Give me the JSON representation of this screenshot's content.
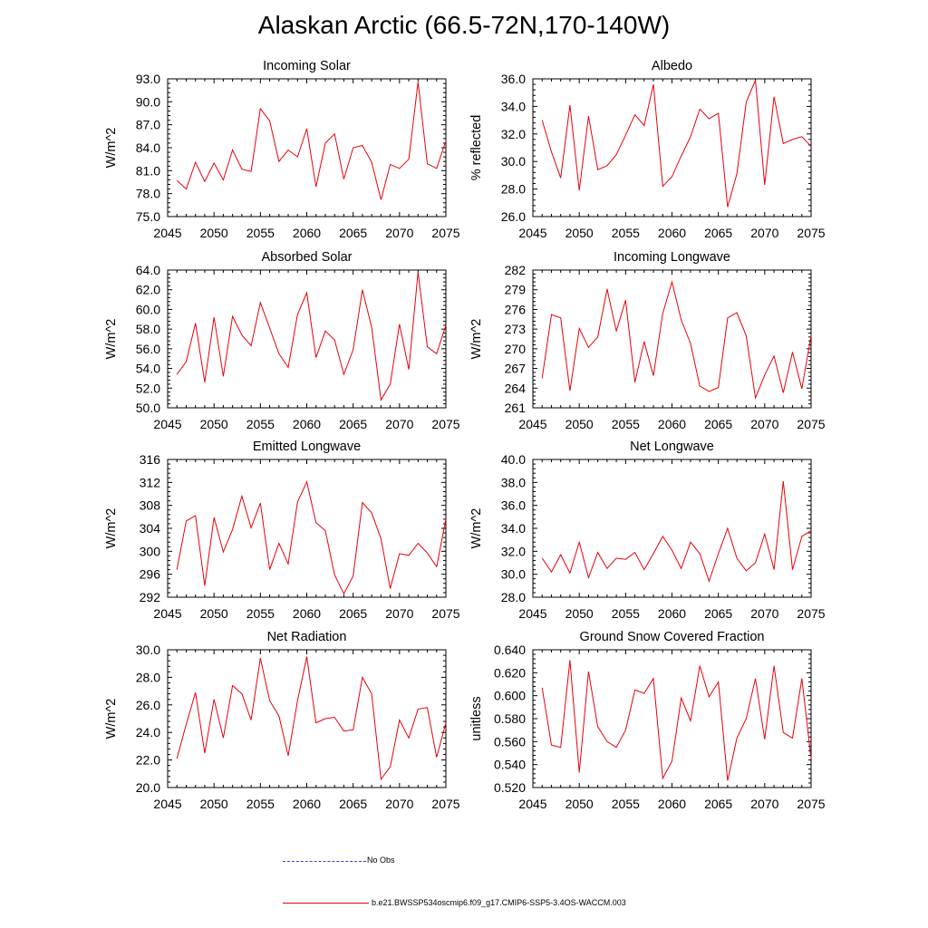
{
  "title": "Alaskan Arctic (66.5-72N,170-140W)",
  "colors": {
    "model": "#e8000b",
    "obs": "#3b3bd6",
    "axis": "#000000"
  },
  "legend": {
    "obs_label": "No Obs",
    "model_label": "b.e21.BWSSP534oscmip6.f09_g17.CMIP6-SSP5-3.4OS-WACCM.003"
  },
  "chart_data": [
    {
      "type": "line",
      "title": "Incoming Solar",
      "xlabel": "",
      "ylabel": "W/m^2",
      "xlim": [
        2045,
        2075
      ],
      "ylim": [
        75.0,
        93.0
      ],
      "x_ticks": [
        2045,
        2050,
        2055,
        2060,
        2065,
        2070,
        2075
      ],
      "y_ticks": [
        "75.0",
        "78.0",
        "81.0",
        "84.0",
        "87.0",
        "90.0",
        "93.0"
      ],
      "x": [
        2046,
        2047,
        2048,
        2049,
        2050,
        2051,
        2052,
        2053,
        2054,
        2055,
        2056,
        2057,
        2058,
        2059,
        2060,
        2061,
        2062,
        2063,
        2064,
        2065,
        2066,
        2067,
        2068,
        2069,
        2070,
        2071,
        2072,
        2073,
        2074,
        2075
      ],
      "series": [
        {
          "name": "b.e21.BWSSP534oscmip6.f09_g17.CMIP6-SSP5-3.4OS-WACCM.003",
          "values": [
            79.7,
            78.6,
            82.1,
            79.6,
            82.0,
            79.8,
            83.7,
            81.2,
            80.9,
            89.1,
            87.5,
            82.2,
            83.7,
            82.8,
            86.5,
            78.9,
            84.6,
            85.8,
            79.9,
            84.0,
            84.3,
            82.1,
            77.2,
            81.8,
            81.3,
            82.5,
            92.6,
            81.9,
            81.3,
            84.9
          ]
        }
      ]
    },
    {
      "type": "line",
      "title": "Albedo",
      "xlabel": "",
      "ylabel": "% reflected",
      "xlim": [
        2045,
        2075
      ],
      "ylim": [
        26.0,
        36.0
      ],
      "x_ticks": [
        2045,
        2050,
        2055,
        2060,
        2065,
        2070,
        2075
      ],
      "y_ticks": [
        "26.0",
        "28.0",
        "30.0",
        "32.0",
        "34.0",
        "36.0"
      ],
      "x": [
        2046,
        2047,
        2048,
        2049,
        2050,
        2051,
        2052,
        2053,
        2054,
        2055,
        2056,
        2057,
        2058,
        2059,
        2060,
        2061,
        2062,
        2063,
        2064,
        2065,
        2066,
        2067,
        2068,
        2069,
        2070,
        2071,
        2072,
        2073,
        2074,
        2075
      ],
      "series": [
        {
          "name": "b.e21.BWSSP534oscmip6.f09_g17.CMIP6-SSP5-3.4OS-WACCM.003",
          "values": [
            33.0,
            30.7,
            28.8,
            34.1,
            27.9,
            33.3,
            29.4,
            29.7,
            30.5,
            31.9,
            33.4,
            32.6,
            35.6,
            28.2,
            28.9,
            30.4,
            31.8,
            33.8,
            33.1,
            33.5,
            26.7,
            29.1,
            34.3,
            35.9,
            28.3,
            34.7,
            31.3,
            31.6,
            31.8,
            31.1
          ]
        }
      ]
    },
    {
      "type": "line",
      "title": "Absorbed Solar",
      "xlabel": "",
      "ylabel": "W/m^2",
      "xlim": [
        2045,
        2075
      ],
      "ylim": [
        50.0,
        64.0
      ],
      "x_ticks": [
        2045,
        2050,
        2055,
        2060,
        2065,
        2070,
        2075
      ],
      "y_ticks": [
        "50.0",
        "52.0",
        "54.0",
        "56.0",
        "58.0",
        "60.0",
        "62.0",
        "64.0"
      ],
      "x": [
        2046,
        2047,
        2048,
        2049,
        2050,
        2051,
        2052,
        2053,
        2054,
        2055,
        2056,
        2057,
        2058,
        2059,
        2060,
        2061,
        2062,
        2063,
        2064,
        2065,
        2066,
        2067,
        2068,
        2069,
        2070,
        2071,
        2072,
        2073,
        2074,
        2075
      ],
      "series": [
        {
          "name": "b.e21.BWSSP534oscmip6.f09_g17.CMIP6-SSP5-3.4OS-WACCM.003",
          "values": [
            53.4,
            54.7,
            58.6,
            52.6,
            59.2,
            53.2,
            59.3,
            57.4,
            56.3,
            60.7,
            58.1,
            55.5,
            54.1,
            59.5,
            61.7,
            55.1,
            57.8,
            56.9,
            53.4,
            55.9,
            62.0,
            58.2,
            50.8,
            52.4,
            58.5,
            53.9,
            63.8,
            56.2,
            55.5,
            58.4
          ]
        }
      ]
    },
    {
      "type": "line",
      "title": "Incoming Longwave",
      "xlabel": "",
      "ylabel": "W/m^2",
      "xlim": [
        2045,
        2075
      ],
      "ylim": [
        261,
        282
      ],
      "x_ticks": [
        2045,
        2050,
        2055,
        2060,
        2065,
        2070,
        2075
      ],
      "y_ticks": [
        "261",
        "264",
        "267",
        "270",
        "273",
        "276",
        "279",
        "282"
      ],
      "x": [
        2046,
        2047,
        2048,
        2049,
        2050,
        2051,
        2052,
        2053,
        2054,
        2055,
        2056,
        2057,
        2058,
        2059,
        2060,
        2061,
        2062,
        2063,
        2064,
        2065,
        2066,
        2067,
        2068,
        2069,
        2070,
        2071,
        2072,
        2073,
        2074,
        2075
      ],
      "series": [
        {
          "name": "b.e21.BWSSP534oscmip6.f09_g17.CMIP6-SSP5-3.4OS-WACCM.003",
          "values": [
            265.5,
            275.2,
            274.7,
            263.6,
            273.1,
            270.2,
            271.8,
            279.1,
            272.7,
            277.4,
            264.9,
            271.1,
            265.9,
            275.4,
            280.2,
            274.4,
            270.8,
            264.3,
            263.5,
            264.1,
            274.7,
            275.5,
            272.0,
            262.5,
            266.0,
            268.9,
            263.3,
            269.5,
            263.9,
            272.0
          ]
        }
      ]
    },
    {
      "type": "line",
      "title": "Emitted Longwave",
      "xlabel": "",
      "ylabel": "W/m^2",
      "xlim": [
        2045,
        2075
      ],
      "ylim": [
        292,
        316
      ],
      "x_ticks": [
        2045,
        2050,
        2055,
        2060,
        2065,
        2070,
        2075
      ],
      "y_ticks": [
        "292",
        "296",
        "300",
        "304",
        "308",
        "312",
        "316"
      ],
      "x": [
        2046,
        2047,
        2048,
        2049,
        2050,
        2051,
        2052,
        2053,
        2054,
        2055,
        2056,
        2057,
        2058,
        2059,
        2060,
        2061,
        2062,
        2063,
        2064,
        2065,
        2066,
        2067,
        2068,
        2069,
        2070,
        2071,
        2072,
        2073,
        2074,
        2075
      ],
      "series": [
        {
          "name": "b.e21.BWSSP534oscmip6.f09_g17.CMIP6-SSP5-3.4OS-WACCM.003",
          "values": [
            296.8,
            305.3,
            306.2,
            294.0,
            305.9,
            299.9,
            303.8,
            309.6,
            304.1,
            308.4,
            296.8,
            301.4,
            297.8,
            308.6,
            312.1,
            305.0,
            303.6,
            295.9,
            292.6,
            295.7,
            308.5,
            306.7,
            302.2,
            293.5,
            299.6,
            299.3,
            301.4,
            299.7,
            297.3,
            305.6
          ]
        }
      ]
    },
    {
      "type": "line",
      "title": "Net Longwave",
      "xlabel": "",
      "ylabel": "W/m^2",
      "xlim": [
        2045,
        2075
      ],
      "ylim": [
        28.0,
        40.0
      ],
      "x_ticks": [
        2045,
        2050,
        2055,
        2060,
        2065,
        2070,
        2075
      ],
      "y_ticks": [
        "28.0",
        "30.0",
        "32.0",
        "34.0",
        "36.0",
        "38.0",
        "40.0"
      ],
      "x": [
        2046,
        2047,
        2048,
        2049,
        2050,
        2051,
        2052,
        2053,
        2054,
        2055,
        2056,
        2057,
        2058,
        2059,
        2060,
        2061,
        2062,
        2063,
        2064,
        2065,
        2066,
        2067,
        2068,
        2069,
        2070,
        2071,
        2072,
        2073,
        2074,
        2075
      ],
      "series": [
        {
          "name": "b.e21.BWSSP534oscmip6.f09_g17.CMIP6-SSP5-3.4OS-WACCM.003",
          "values": [
            31.4,
            30.2,
            31.7,
            30.1,
            32.8,
            29.7,
            31.9,
            30.5,
            31.4,
            31.3,
            31.9,
            30.4,
            31.8,
            33.3,
            32.1,
            30.5,
            32.8,
            31.8,
            29.4,
            31.8,
            34.0,
            31.4,
            30.3,
            31.0,
            33.5,
            30.4,
            38.1,
            30.4,
            33.3,
            33.8
          ]
        }
      ]
    },
    {
      "type": "line",
      "title": "Net Radiation",
      "xlabel": "",
      "ylabel": "W/m^2",
      "xlim": [
        2045,
        2075
      ],
      "ylim": [
        20.0,
        30.0
      ],
      "x_ticks": [
        2045,
        2050,
        2055,
        2060,
        2065,
        2070,
        2075
      ],
      "y_ticks": [
        "20.0",
        "22.0",
        "24.0",
        "26.0",
        "28.0",
        "30.0"
      ],
      "x": [
        2046,
        2047,
        2048,
        2049,
        2050,
        2051,
        2052,
        2053,
        2054,
        2055,
        2056,
        2057,
        2058,
        2059,
        2060,
        2061,
        2062,
        2063,
        2064,
        2065,
        2066,
        2067,
        2068,
        2069,
        2070,
        2071,
        2072,
        2073,
        2074,
        2075
      ],
      "series": [
        {
          "name": "b.e21.BWSSP534oscmip6.f09_g17.CMIP6-SSP5-3.4OS-WACCM.003",
          "values": [
            22.1,
            24.6,
            26.9,
            22.5,
            26.4,
            23.6,
            27.4,
            26.8,
            24.9,
            29.4,
            26.3,
            25.2,
            22.3,
            26.3,
            29.5,
            24.7,
            25.0,
            25.1,
            24.1,
            24.2,
            28.0,
            26.8,
            20.6,
            21.5,
            24.9,
            23.6,
            25.7,
            25.8,
            22.2,
            24.7
          ]
        }
      ]
    },
    {
      "type": "line",
      "title": "Ground Snow Covered Fraction",
      "xlabel": "",
      "ylabel": "unitless",
      "xlim": [
        2045,
        2075
      ],
      "ylim": [
        0.52,
        0.64
      ],
      "x_ticks": [
        2045,
        2050,
        2055,
        2060,
        2065,
        2070,
        2075
      ],
      "y_ticks": [
        "0.520",
        "0.540",
        "0.560",
        "0.580",
        "0.600",
        "0.620",
        "0.640"
      ],
      "x": [
        2046,
        2047,
        2048,
        2049,
        2050,
        2051,
        2052,
        2053,
        2054,
        2055,
        2056,
        2057,
        2058,
        2059,
        2060,
        2061,
        2062,
        2063,
        2064,
        2065,
        2066,
        2067,
        2068,
        2069,
        2070,
        2071,
        2072,
        2073,
        2074,
        2075
      ],
      "series": [
        {
          "name": "b.e21.BWSSP534oscmip6.f09_g17.CMIP6-SSP5-3.4OS-WACCM.003",
          "values": [
            0.607,
            0.557,
            0.555,
            0.631,
            0.533,
            0.621,
            0.573,
            0.56,
            0.555,
            0.57,
            0.605,
            0.602,
            0.615,
            0.528,
            0.543,
            0.598,
            0.578,
            0.626,
            0.599,
            0.612,
            0.526,
            0.563,
            0.58,
            0.615,
            0.562,
            0.626,
            0.568,
            0.563,
            0.615,
            0.545
          ]
        }
      ]
    }
  ]
}
